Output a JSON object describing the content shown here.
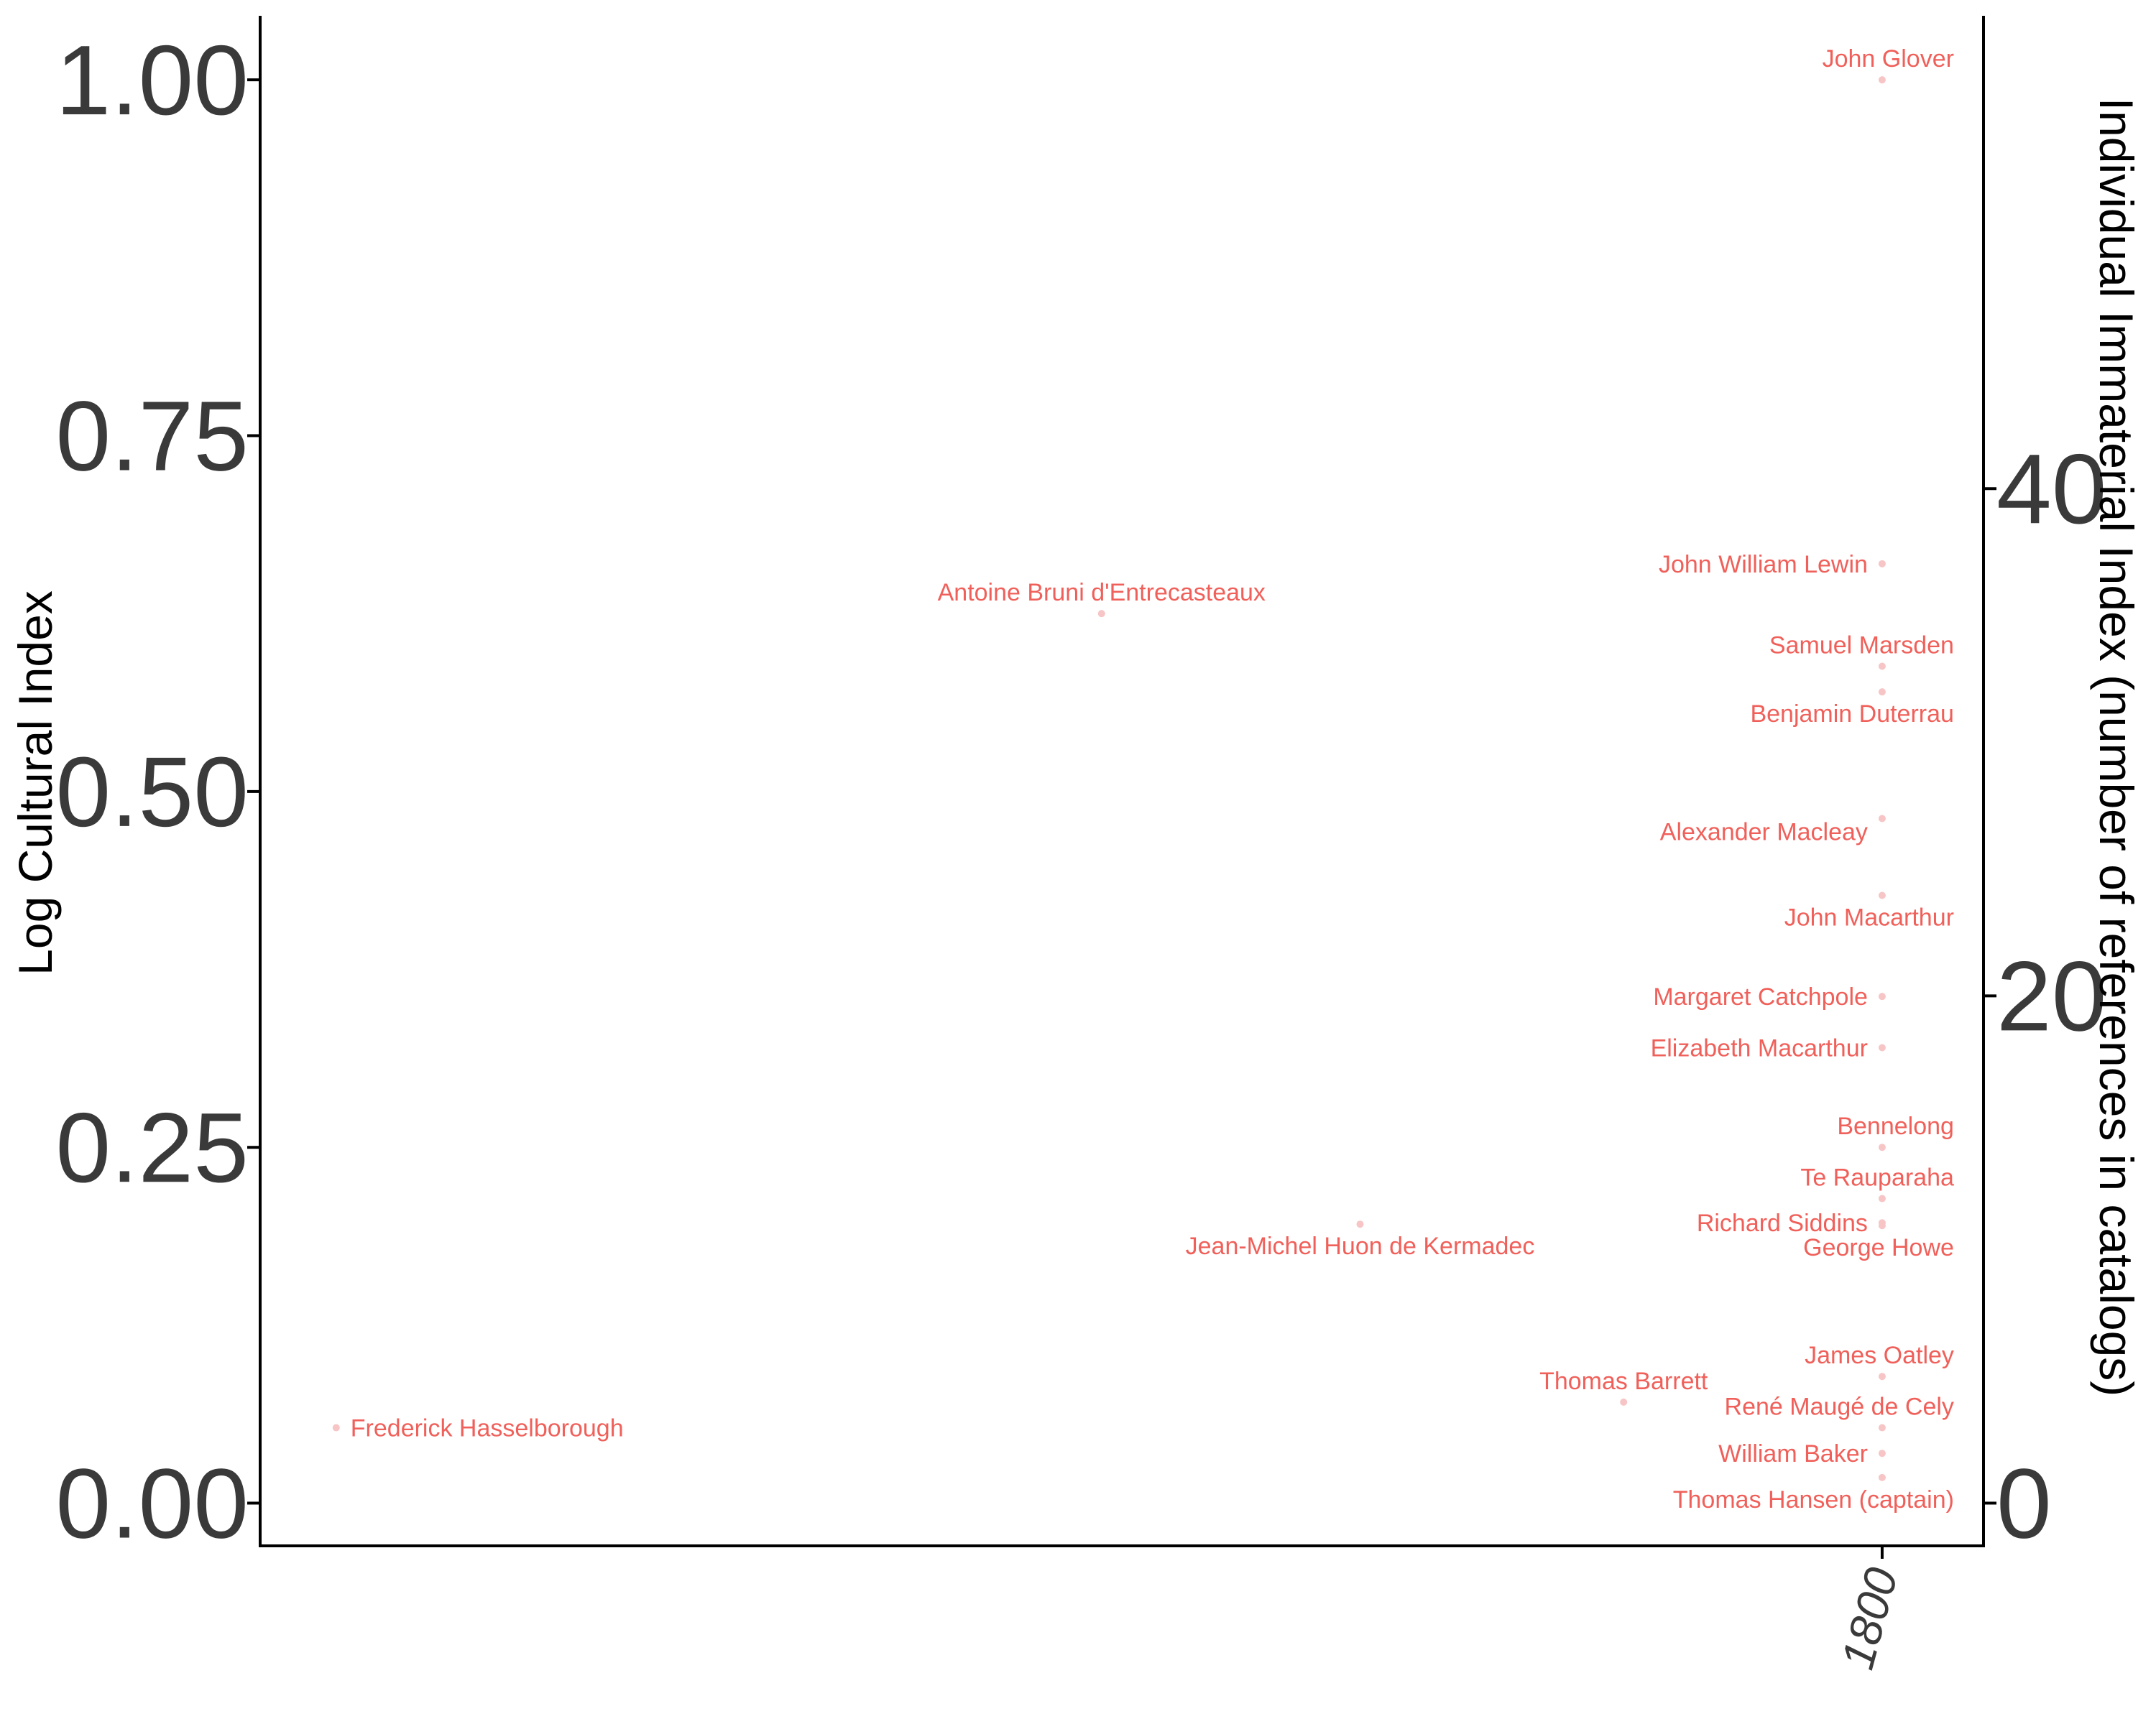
{
  "chart_data": {
    "type": "scatter",
    "title": "",
    "ylabel": "Log Cultural Index",
    "y2label": "Individual Immaterial Index (number of references in catalogs)",
    "xlabel": "",
    "xlim": [
      1640,
      1810
    ],
    "ylim": [
      -0.03,
      1.045
    ],
    "y2lim": [
      -0.03,
      1.045
    ],
    "yticks": [
      0.0,
      0.25,
      0.5,
      0.75,
      1.0
    ],
    "ytick_labels": [
      "0.00",
      "0.25",
      "0.50",
      "0.75",
      "1.00"
    ],
    "y2ticks": [
      0.0,
      0.3564,
      0.7128
    ],
    "y2tick_labels": [
      "0",
      "20",
      "40"
    ],
    "xticks": [
      1800
    ],
    "xtick_labels": [
      "1800"
    ],
    "grid": false,
    "legend": "none",
    "point_color": "#f7c5c5",
    "label_color": "#f0605a",
    "points": [
      {
        "name": "John Glover",
        "x": 1800,
        "y": 1.0,
        "label_pos": "above"
      },
      {
        "name": "John William Lewin",
        "x": 1800,
        "y": 0.66,
        "label_pos": "left"
      },
      {
        "name": "Antoine Bruni d'Entrecasteaux",
        "x": 1723,
        "y": 0.625,
        "label_pos": "above"
      },
      {
        "name": "Samuel Marsden",
        "x": 1800,
        "y": 0.588,
        "label_pos": "above"
      },
      {
        "name": "Benjamin Duterrau",
        "x": 1800,
        "y": 0.57,
        "label_pos": "below"
      },
      {
        "name": "Alexander Macleay",
        "x": 1800,
        "y": 0.481,
        "label_pos": "left-below"
      },
      {
        "name": "John Macarthur",
        "x": 1800,
        "y": 0.427,
        "label_pos": "below"
      },
      {
        "name": "Margaret Catchpole",
        "x": 1800,
        "y": 0.356,
        "label_pos": "left"
      },
      {
        "name": "Elizabeth Macarthur",
        "x": 1800,
        "y": 0.32,
        "label_pos": "left"
      },
      {
        "name": "Bennelong",
        "x": 1800,
        "y": 0.25,
        "label_pos": "above"
      },
      {
        "name": "Te Rauparaha",
        "x": 1800,
        "y": 0.214,
        "label_pos": "above"
      },
      {
        "name": "Richard Siddins",
        "x": 1800,
        "y": 0.197,
        "label_pos": "left"
      },
      {
        "name": "George Howe",
        "x": 1800,
        "y": 0.195,
        "label_pos": "below"
      },
      {
        "name": "Jean-Michel Huon de Kermadec",
        "x": 1748.5,
        "y": 0.196,
        "label_pos": "below"
      },
      {
        "name": "James Oatley",
        "x": 1800,
        "y": 0.089,
        "label_pos": "above"
      },
      {
        "name": "Thomas Barrett",
        "x": 1774.5,
        "y": 0.071,
        "label_pos": "above"
      },
      {
        "name": "René Maugé de Cely",
        "x": 1800,
        "y": 0.053,
        "label_pos": "above"
      },
      {
        "name": "Frederick Hasselborough",
        "x": 1647.5,
        "y": 0.053,
        "label_pos": "right"
      },
      {
        "name": "William Baker",
        "x": 1800,
        "y": 0.035,
        "label_pos": "left"
      },
      {
        "name": "Thomas Hansen (captain)",
        "x": 1800,
        "y": 0.018,
        "label_pos": "below"
      }
    ]
  }
}
